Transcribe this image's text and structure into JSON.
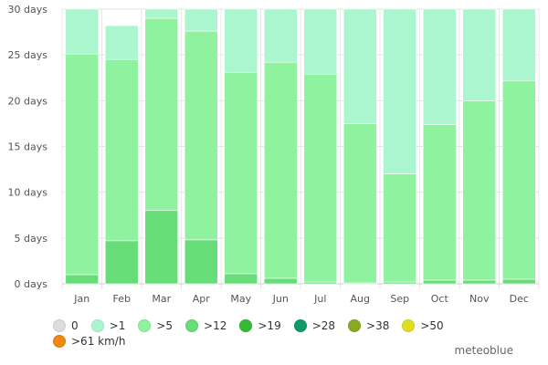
{
  "chart_data": {
    "type": "bar",
    "stacked": true,
    "categories": [
      "Jan",
      "Feb",
      "Mar",
      "Apr",
      "May",
      "Jun",
      "Jul",
      "Aug",
      "Sep",
      "Oct",
      "Nov",
      "Dec"
    ],
    "month_totals": [
      31,
      28.2,
      31,
      30,
      31,
      30,
      31,
      31,
      30,
      31,
      30,
      31
    ],
    "series": [
      {
        "name": ">12",
        "color": "#66dd77",
        "values": [
          1.0,
          4.7,
          8.0,
          4.8,
          1.1,
          0.6,
          0.2,
          0.1,
          0.2,
          0.4,
          0.4,
          0.5
        ]
      },
      {
        "name": ">5",
        "color": "#8ef29e",
        "values": [
          24.1,
          19.8,
          21.0,
          22.8,
          22.0,
          23.6,
          22.7,
          17.4,
          11.8,
          17.0,
          19.6,
          21.7
        ]
      },
      {
        "name": ">1",
        "color": "#aaf6cf",
        "values": [
          5.9,
          3.7,
          2.0,
          2.4,
          7.9,
          5.8,
          8.1,
          13.5,
          18.0,
          13.6,
          10.0,
          8.8
        ]
      }
    ],
    "ylim": [
      0,
      30
    ],
    "yticks": [
      "0 days",
      "5 days",
      "10 days",
      "15 days",
      "20 days",
      "25 days",
      "30 days"
    ],
    "grid": true,
    "legend_placement": "bottom"
  },
  "legend": [
    {
      "label": "0",
      "color": "#dddddd"
    },
    {
      "label": ">1",
      "color": "#aaf6cf"
    },
    {
      "label": ">5",
      "color": "#8ef29e"
    },
    {
      "label": ">12",
      "color": "#66dd77"
    },
    {
      "label": ">19",
      "color": "#33bb33"
    },
    {
      "label": ">28",
      "color": "#119966"
    },
    {
      "label": ">38",
      "color": "#88aa22"
    },
    {
      "label": ">50",
      "color": "#dddd22"
    },
    {
      "label": ">61 km/h",
      "color": "#ee8811"
    }
  ],
  "watermark": "meteoblue"
}
